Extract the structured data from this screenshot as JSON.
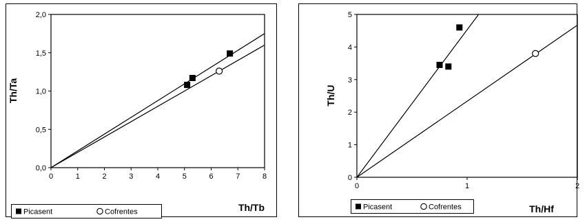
{
  "chart_data": [
    {
      "type": "scatter",
      "xlabel": "Th/Tb",
      "ylabel": "Th/Ta",
      "xlim": [
        0,
        8
      ],
      "ylim": [
        0,
        2
      ],
      "x_ticks": [
        "0",
        "1",
        "2",
        "3",
        "4",
        "5",
        "6",
        "7",
        "8"
      ],
      "y_ticks": [
        "0,0",
        "0,5",
        "1,0",
        "1,5",
        "2,0"
      ],
      "series": [
        {
          "name": "Picasent",
          "marker": "filled-square",
          "color": "#000000",
          "points": [
            [
              5.1,
              1.08
            ],
            [
              5.3,
              1.17
            ],
            [
              6.7,
              1.49
            ]
          ]
        },
        {
          "name": "Cofrentes",
          "marker": "open-circle",
          "color": "#000000",
          "points": [
            [
              6.3,
              1.26
            ]
          ]
        }
      ],
      "lines": [
        {
          "from": [
            0,
            0
          ],
          "to": [
            8,
            1.75
          ]
        },
        {
          "from": [
            0,
            0
          ],
          "to": [
            8,
            1.6
          ]
        }
      ],
      "legend_position": "bottom-left",
      "grid": false
    },
    {
      "type": "scatter",
      "xlabel": "Th/Hf",
      "ylabel": "Th/U",
      "xlim": [
        0,
        2
      ],
      "ylim": [
        0,
        5
      ],
      "x_ticks": [
        "0",
        "1",
        "2"
      ],
      "y_ticks": [
        "0",
        "1",
        "2",
        "3",
        "4",
        "5"
      ],
      "series": [
        {
          "name": "Picasent",
          "marker": "filled-square",
          "color": "#000000",
          "points": [
            [
              0.75,
              3.45
            ],
            [
              0.83,
              3.4
            ],
            [
              0.93,
              4.6
            ]
          ]
        },
        {
          "name": "Cofrentes",
          "marker": "open-circle",
          "color": "#000000",
          "points": [
            [
              1.62,
              3.8
            ]
          ]
        }
      ],
      "lines": [
        {
          "from": [
            0,
            0
          ],
          "to": [
            1.104,
            5.0
          ]
        },
        {
          "from": [
            0,
            0
          ],
          "to": [
            2.0,
            4.67
          ]
        }
      ],
      "legend_position": "bottom-left",
      "grid": false
    }
  ]
}
